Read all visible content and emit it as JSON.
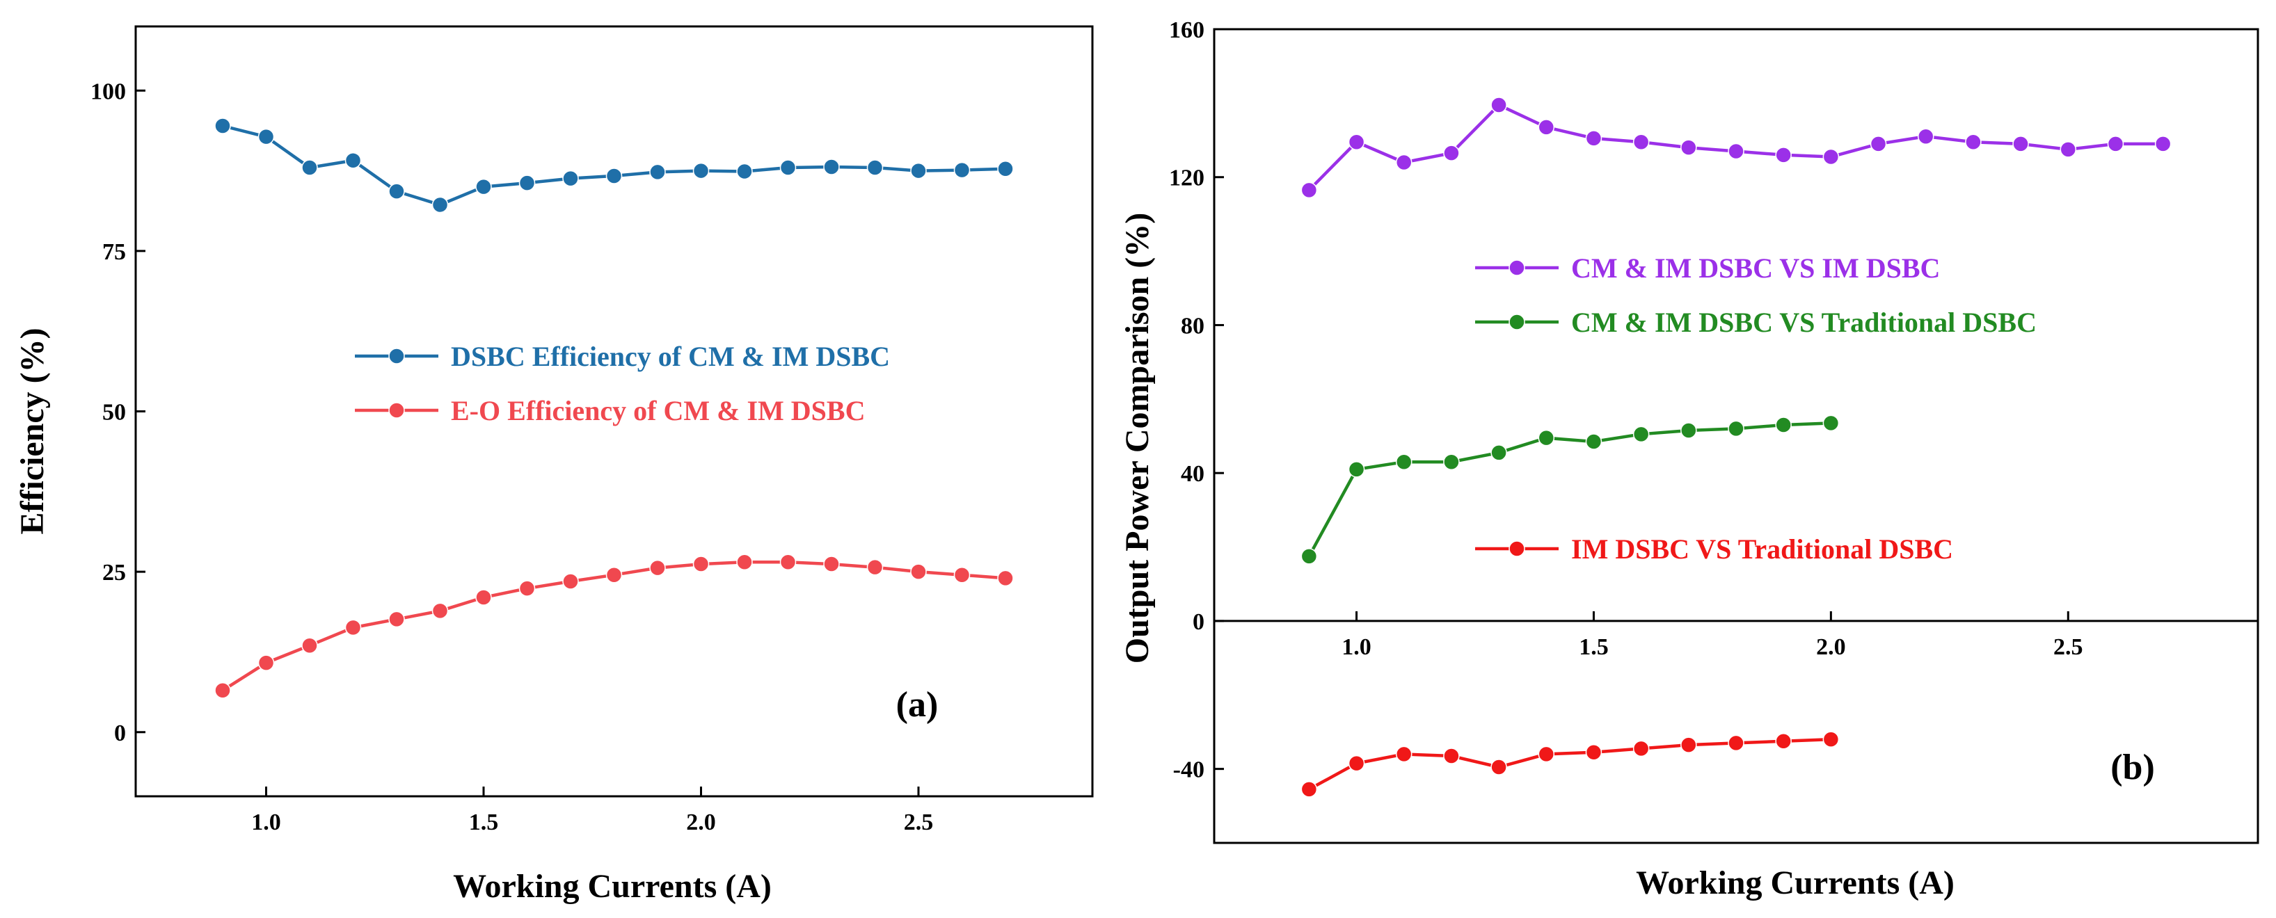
{
  "chart_data": [
    {
      "type": "line",
      "panel_label": "(a)",
      "xlabel": "Working Currents (A)",
      "ylabel": "Efficiency (%)",
      "xlim": [
        0.7,
        2.9
      ],
      "ylim": [
        -10,
        110
      ],
      "xticks": [
        1.0,
        1.5,
        2.0,
        2.5
      ],
      "xtick_labels": [
        "1.0",
        "1.5",
        "2.0",
        "2.5"
      ],
      "yticks": [
        0,
        25,
        50,
        75,
        100
      ],
      "ytick_labels": [
        "0",
        "25",
        "50",
        "75",
        "100"
      ],
      "legend_position": "middle-right",
      "series": [
        {
          "name": "DSBC Efficiency of CM & IM DSBC",
          "color": "#1f6fa8",
          "x": [
            0.9,
            1.0,
            1.1,
            1.2,
            1.3,
            1.4,
            1.5,
            1.6,
            1.7,
            1.8,
            1.9,
            2.0,
            2.1,
            2.2,
            2.3,
            2.4,
            2.5,
            2.6,
            2.7
          ],
          "values": [
            94.5,
            92.8,
            88.0,
            89.1,
            84.3,
            82.2,
            85.0,
            85.6,
            86.3,
            86.7,
            87.3,
            87.5,
            87.4,
            88.0,
            88.1,
            88.0,
            87.5,
            87.6,
            87.8
          ]
        },
        {
          "name": "E-O Efficiency of CM & IM DSBC",
          "color": "#f0484f",
          "x": [
            0.9,
            1.0,
            1.1,
            1.2,
            1.3,
            1.4,
            1.5,
            1.6,
            1.7,
            1.8,
            1.9,
            2.0,
            2.1,
            2.2,
            2.3,
            2.4,
            2.5,
            2.6,
            2.7
          ],
          "values": [
            6.5,
            10.8,
            13.5,
            16.3,
            17.6,
            18.9,
            21.0,
            22.4,
            23.5,
            24.5,
            25.6,
            26.2,
            26.5,
            26.5,
            26.2,
            25.7,
            25.0,
            24.5,
            24.0
          ]
        }
      ]
    },
    {
      "type": "line",
      "panel_label": "(b)",
      "xlabel": "Working Currents (A)",
      "ylabel": "Output Power Comparison (%)",
      "xlim": [
        0.7,
        2.9
      ],
      "ylim": [
        -60,
        160
      ],
      "xticks": [
        1.0,
        1.5,
        2.0,
        2.5
      ],
      "xtick_labels": [
        "1.0",
        "1.5",
        "2.0",
        "2.5"
      ],
      "yticks": [
        -40,
        0,
        40,
        80,
        120,
        160
      ],
      "ytick_labels": [
        "-40",
        "0",
        "40",
        "80",
        "120",
        "160"
      ],
      "x_axis_at": 0,
      "legend_position": "center-right",
      "series": [
        {
          "name": "CM & IM DSBC VS IM DSBC",
          "color": "#9b30e8",
          "x": [
            0.9,
            1.0,
            1.1,
            1.2,
            1.3,
            1.4,
            1.5,
            1.6,
            1.7,
            1.8,
            1.9,
            2.0,
            2.1,
            2.2,
            2.3,
            2.4,
            2.5,
            2.6,
            2.7
          ],
          "values": [
            116.5,
            129.5,
            124.0,
            126.5,
            139.5,
            133.5,
            130.5,
            129.5,
            128.0,
            127.0,
            126.0,
            125.5,
            129.0,
            131.0,
            129.5,
            129.0,
            127.5,
            129.0,
            129.0
          ]
        },
        {
          "name": "CM & IM DSBC VS Traditional DSBC",
          "color": "#228b22",
          "x": [
            0.9,
            1.0,
            1.1,
            1.2,
            1.3,
            1.4,
            1.5,
            1.6,
            1.7,
            1.8,
            1.9,
            2.0
          ],
          "values": [
            17.5,
            41.0,
            43.0,
            43.0,
            45.5,
            49.5,
            48.5,
            50.5,
            51.5,
            52.0,
            53.0,
            53.5
          ]
        },
        {
          "name": "IM DSBC VS Traditional DSBC",
          "color": "#f01818",
          "x": [
            0.9,
            1.0,
            1.1,
            1.2,
            1.3,
            1.4,
            1.5,
            1.6,
            1.7,
            1.8,
            1.9,
            2.0
          ],
          "values": [
            -45.5,
            -38.5,
            -36.0,
            -36.5,
            -39.5,
            -36.0,
            -35.5,
            -34.5,
            -33.5,
            -33.0,
            -32.5,
            -32.0
          ]
        }
      ]
    }
  ]
}
